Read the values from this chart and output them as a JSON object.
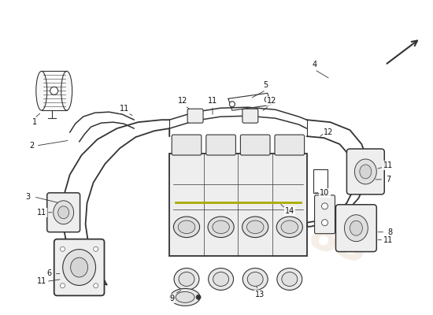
{
  "bg_color": "#ffffff",
  "line_color": "#333333",
  "light_gray": "#c8c8c8",
  "mid_gray": "#a0a0a0",
  "label_fontsize": 7,
  "watermark_color": "#ddc8b0",
  "watermark2_color": "#e8d5c0"
}
